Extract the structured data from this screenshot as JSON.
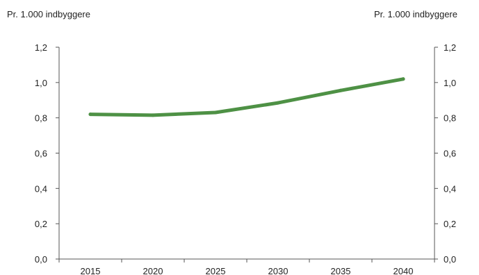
{
  "chart_data": {
    "type": "line",
    "left_axis_unit": "Pr. 1.000 indbyggere",
    "right_axis_unit": "Pr. 1.000 indbyggere",
    "x": [
      "2015",
      "2020",
      "2025",
      "2030",
      "2035",
      "2040"
    ],
    "y_tick_labels": [
      "0,0",
      "0,2",
      "0,4",
      "0,6",
      "0,8",
      "1,0",
      "1,2"
    ],
    "ylim": [
      0,
      1.2
    ],
    "grid": false,
    "series": [
      {
        "values": [
          0.82,
          0.815,
          0.83,
          0.885,
          0.955,
          1.02
        ],
        "color": "#4e9145"
      }
    ]
  }
}
